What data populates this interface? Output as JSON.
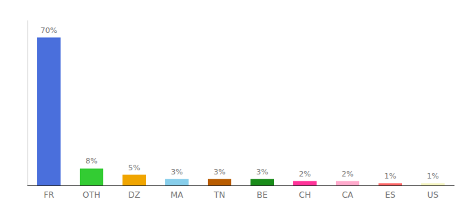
{
  "chart_data": {
    "type": "bar",
    "categories": [
      "FR",
      "OTH",
      "DZ",
      "MA",
      "TN",
      "BE",
      "CH",
      "CA",
      "ES",
      "US"
    ],
    "values": [
      70,
      8,
      5,
      3,
      3,
      3,
      2,
      2,
      1,
      1
    ],
    "value_labels": [
      "70%",
      "8%",
      "5%",
      "3%",
      "3%",
      "3%",
      "2%",
      "2%",
      "1%",
      "1%"
    ],
    "colors": [
      "#4a6fdc",
      "#33cc33",
      "#f0a500",
      "#87ceeb",
      "#b85c00",
      "#1a8c1a",
      "#ff3399",
      "#ffaacc",
      "#ff6666",
      "#f5f5c0"
    ],
    "ylim": [
      0,
      78
    ],
    "grid": false,
    "data_labels": true,
    "tick_labels": "x"
  }
}
